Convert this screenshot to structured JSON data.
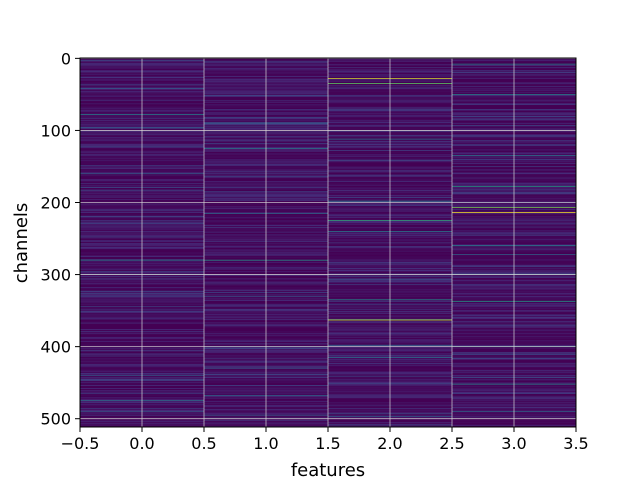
{
  "chart_data": {
    "type": "heatmap",
    "title": "",
    "xlabel": "features",
    "ylabel": "channels",
    "xlim": [
      -0.5,
      3.5
    ],
    "ylim": [
      511.5,
      -0.5
    ],
    "y_inverted": true,
    "grid": true,
    "colormap": "viridis",
    "background_color": "#440154",
    "x_ticks": [
      -0.5,
      0.0,
      0.5,
      1.0,
      1.5,
      2.0,
      2.5,
      3.0,
      3.5
    ],
    "x_tick_labels": [
      "−0.5",
      "0.0",
      "0.5",
      "1.0",
      "1.5",
      "2.0",
      "2.5",
      "3.0",
      "3.5"
    ],
    "y_ticks": [
      0,
      100,
      200,
      300,
      400,
      500
    ],
    "y_tick_labels": [
      "0",
      "100",
      "200",
      "300",
      "400",
      "500"
    ],
    "n_features": 4,
    "n_channels": 512,
    "columns": [
      {
        "feature": 0,
        "highlights": [
          {
            "channel": 42,
            "value": 0.3
          },
          {
            "channel": 78,
            "value": 0.45
          },
          {
            "channel": 96,
            "value": 0.28
          },
          {
            "channel": 160,
            "value": 0.3
          },
          {
            "channel": 280,
            "value": 0.45
          },
          {
            "channel": 300,
            "value": 0.25
          },
          {
            "channel": 440,
            "value": 0.3
          },
          {
            "channel": 475,
            "value": 0.4
          },
          {
            "channel": 490,
            "value": 0.28
          }
        ]
      },
      {
        "feature": 1,
        "highlights": [
          {
            "channel": 90,
            "value": 0.3
          },
          {
            "channel": 125,
            "value": 0.45
          },
          {
            "channel": 215,
            "value": 0.35
          },
          {
            "channel": 280,
            "value": 0.55
          },
          {
            "channel": 330,
            "value": 0.3
          },
          {
            "channel": 430,
            "value": 0.3
          },
          {
            "channel": 468,
            "value": 0.35
          },
          {
            "channel": 495,
            "value": 0.3
          }
        ]
      },
      {
        "feature": 2,
        "highlights": [
          {
            "channel": 28,
            "value": 0.95
          },
          {
            "channel": 35,
            "value": 0.75
          },
          {
            "channel": 112,
            "value": 0.4
          },
          {
            "channel": 198,
            "value": 0.45
          },
          {
            "channel": 225,
            "value": 0.65
          },
          {
            "channel": 240,
            "value": 0.4
          },
          {
            "channel": 335,
            "value": 0.5
          },
          {
            "channel": 363,
            "value": 0.9
          },
          {
            "channel": 398,
            "value": 0.4
          },
          {
            "channel": 415,
            "value": 0.35
          },
          {
            "channel": 497,
            "value": 0.3
          }
        ]
      },
      {
        "feature": 3,
        "highlights": [
          {
            "channel": 8,
            "value": 0.45
          },
          {
            "channel": 50,
            "value": 0.5
          },
          {
            "channel": 135,
            "value": 0.4
          },
          {
            "channel": 178,
            "value": 0.55
          },
          {
            "channel": 207,
            "value": 0.8
          },
          {
            "channel": 214,
            "value": 1.0
          },
          {
            "channel": 260,
            "value": 0.45
          },
          {
            "channel": 272,
            "value": 0.35
          },
          {
            "channel": 300,
            "value": 0.4
          },
          {
            "channel": 337,
            "value": 0.55
          },
          {
            "channel": 400,
            "value": 0.45
          },
          {
            "channel": 452,
            "value": 0.45
          },
          {
            "channel": 490,
            "value": 0.35
          }
        ]
      }
    ]
  }
}
